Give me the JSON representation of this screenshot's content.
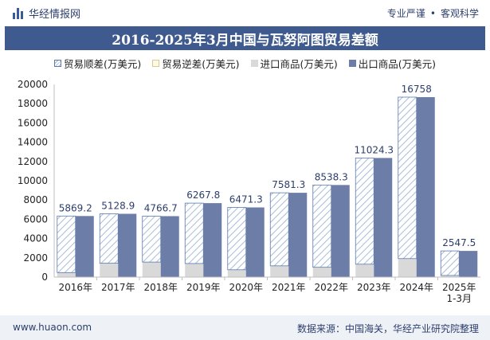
{
  "header": {
    "brand": "华经情报网",
    "tagline_left": "专业严谨",
    "tagline_sep": "•",
    "tagline_right": "客观科学"
  },
  "footer": {
    "website": "www.huaon.com",
    "source": "数据来源：中国海关，华经产业研究院整理"
  },
  "colors": {
    "title_bg": "#3e5a8e",
    "export": "#6c7ea8",
    "import": "#d9d9d9",
    "surplus_stroke": "#5a7aad",
    "deficit_stroke": "#d9c98a"
  },
  "chart_data": {
    "type": "bar",
    "title": "2016-2025年3月中国与瓦努阿图贸易差额",
    "categories": [
      "2016年",
      "2017年",
      "2018年",
      "2019年",
      "2020年",
      "2021年",
      "2022年",
      "2023年",
      "2024年",
      "2025年\n1-3月"
    ],
    "series": [
      {
        "name": "贸易顺差(万美元)",
        "values": [
          5869.2,
          5128.9,
          4766.7,
          6267.8,
          6471.3,
          7581.3,
          8538.3,
          11024.3,
          16758,
          2547.5
        ]
      },
      {
        "name": "贸易逆差(万美元)",
        "values": [
          0,
          0,
          0,
          0,
          0,
          0,
          0,
          0,
          0,
          0
        ]
      },
      {
        "name": "进口商品(万美元)",
        "values": [
          470,
          1440,
          1560,
          1410,
          760,
          1170,
          1020,
          1340,
          1920,
          170
        ]
      },
      {
        "name": "出口商品(万美元)",
        "values": [
          6339.2,
          6568.9,
          6326.7,
          7677.8,
          7231.3,
          8751.3,
          9558.3,
          12364.3,
          18678,
          2717.5
        ]
      }
    ],
    "data_labels": [
      "5869.2",
      "5128.9",
      "4766.7",
      "6267.8",
      "6471.3",
      "7581.3",
      "8538.3",
      "11024.3",
      "16758",
      "2547.5"
    ],
    "ylim": [
      0,
      20000
    ],
    "yticks": [
      0,
      2000,
      4000,
      6000,
      8000,
      10000,
      12000,
      14000,
      16000,
      18000,
      20000
    ],
    "grid": false,
    "legend_position": "top"
  }
}
